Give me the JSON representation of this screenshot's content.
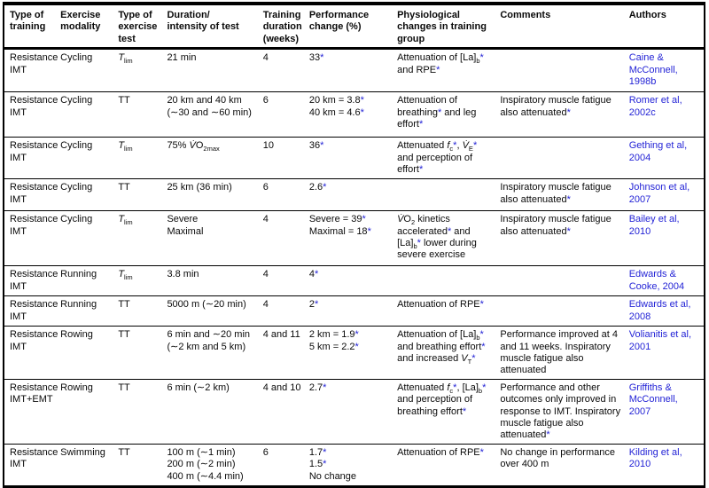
{
  "colors": {
    "link_blue": "#2323d6",
    "text": "#0a0a0a",
    "border": "#000000"
  },
  "table": {
    "headers": {
      "training": "Type of<br>training",
      "modality": "Exercise<br>modality",
      "test": "Type of<br>exercise<br>test",
      "duration": "Duration/<br>intensity of test",
      "weeks": "Training<br>duration<br>(weeks)",
      "performance": "Performance<br>change (%)",
      "physiological": "Physiological<br>changes in training<br>group",
      "comments": "Comments",
      "authors": "Authors"
    },
    "rows": [
      {
        "training": "Resistance IMT",
        "modality": "Cycling",
        "test": "<i>T</i><sub>lim</sub>",
        "duration": "21 min",
        "weeks": "4",
        "performance": "33*",
        "physiological": "Attenuation of [La]<sub>b</sub>* and RPE*",
        "comments": "",
        "authors": "Caine & McConnell, 1998b"
      },
      {
        "training": "Resistance IMT",
        "modality": "Cycling",
        "test": "TT",
        "duration": "20 km and 40 km<br>(∼30 and ∼60 min)",
        "weeks": "6",
        "performance": "20 km = 3.8*<br>40 km = 4.6*",
        "physiological": "Attenuation of breathing* and leg effort*",
        "comments": "Inspiratory muscle fatigue also attenuated*",
        "authors": "Romer et al, 2002c"
      },
      {
        "training": "Resistance IMT",
        "modality": "Cycling",
        "test": "<i>T</i><sub>lim</sub>",
        "duration": "75% <i>V̇</i>O<sub>2max</sub>",
        "weeks": "10",
        "performance": "36*",
        "physiological": "Attenuated <i>f</i><sub>c</sub>*, <i>V̇</i><sub>E</sub>* and perception of effort*",
        "comments": "",
        "authors": "Gething et al, 2004"
      },
      {
        "training": "Resistance IMT",
        "modality": "Cycling",
        "test": "TT",
        "duration": "25 km (36 min)",
        "weeks": "6",
        "performance": "2.6*",
        "physiological": "",
        "comments": "Inspiratory muscle fatigue also attenuated*",
        "authors": "Johnson et al, 2007"
      },
      {
        "training": "Resistance IMT",
        "modality": "Cycling",
        "test": "<i>T</i><sub>lim</sub>",
        "duration": "Severe<br>Maximal",
        "weeks": "4",
        "performance": "Severe = 39*<br>Maximal = 18*",
        "physiological": "<i>V̇</i>O<sub>2</sub> kinetics accelerated* and [La]<sub>b</sub>* lower during severe exercise",
        "comments": "Inspiratory muscle fatigue also attenuated*",
        "authors": "Bailey et al, 2010"
      },
      {
        "training": "Resistance IMT",
        "modality": "Running",
        "test": "<i>T</i><sub>lim</sub>",
        "duration": "3.8 min",
        "weeks": "4",
        "performance": "4*",
        "physiological": "",
        "comments": "",
        "authors": "Edwards & Cooke, 2004"
      },
      {
        "training": "Resistance IMT",
        "modality": "Running",
        "test": "TT",
        "duration": "5000 m (∼20 min)",
        "weeks": "4",
        "performance": "2*",
        "physiological": "Attenuation of RPE*",
        "comments": "",
        "authors": "Edwards et al, 2008"
      },
      {
        "training": "Resistance IMT",
        "modality": "Rowing",
        "test": "TT",
        "duration": "6 min and ∼20 min<br>(∼2 km and 5 km)",
        "weeks": "4 and 11",
        "performance": "2 km = 1.9*<br>5 km = 2.2*",
        "physiological": "Attenuation of [La]<sub>b</sub>* and breathing effort* and increased <i>V</i><sub>T</sub>*",
        "comments": "Performance improved at 4 and 11 weeks. Inspiratory muscle fatigue also attenuated",
        "authors": "Volianitis et al, 2001"
      },
      {
        "training": "Resistance IMT+EMT",
        "modality": "Rowing",
        "test": "TT",
        "duration": "6 min (∼2 km)",
        "weeks": "4 and 10",
        "performance": "2.7*",
        "physiological": "Attenuated <i>f</i><sub>c</sub>*, [La]<sub>b</sub>* and perception of breathing effort*",
        "comments": "Performance and other outcomes only improved in response to IMT. Inspiratory muscle fatigue also attenuated*",
        "authors": "Griffiths & McConnell, 2007"
      },
      {
        "training": "Resistance IMT",
        "modality": "Swimming",
        "test": "TT",
        "duration": "100 m (∼1 min)<br>200 m (∼2 min)<br>400 m (∼4.4 min)",
        "weeks": "6",
        "performance": "1.7*<br>1.5*<br>No change",
        "physiological": "Attenuation of RPE*",
        "comments": "No change in performance over 400 m",
        "authors": "Kilding et al, 2010"
      }
    ]
  }
}
